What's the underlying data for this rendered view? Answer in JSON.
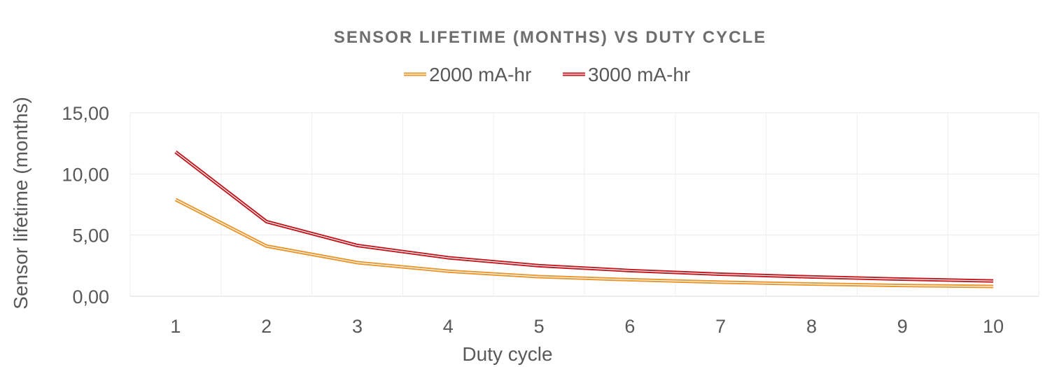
{
  "chart_data": {
    "type": "line",
    "title": "SENSOR LIFETIME (MONTHS) VS DUTY CYCLE",
    "xlabel": "Duty cycle",
    "ylabel": "Sensor lifetime (months)",
    "categories": [
      "1",
      "2",
      "3",
      "4",
      "5",
      "6",
      "7",
      "8",
      "9",
      "10"
    ],
    "y_ticks": [
      "0,00",
      "5,00",
      "10,00",
      "15,00"
    ],
    "ylim": [
      0,
      15
    ],
    "grid": "vertical and horizontal",
    "legend_position": "top",
    "series": [
      {
        "name": "2000 mA-hr",
        "color": "#E8962E",
        "values": [
          7.9,
          4.1,
          2.75,
          2.05,
          1.6,
          1.35,
          1.15,
          1.0,
          0.88,
          0.8
        ]
      },
      {
        "name": "3000 mA-hr",
        "color": "#C0181E",
        "values": [
          11.8,
          6.1,
          4.15,
          3.15,
          2.5,
          2.1,
          1.8,
          1.58,
          1.4,
          1.25
        ]
      }
    ]
  }
}
